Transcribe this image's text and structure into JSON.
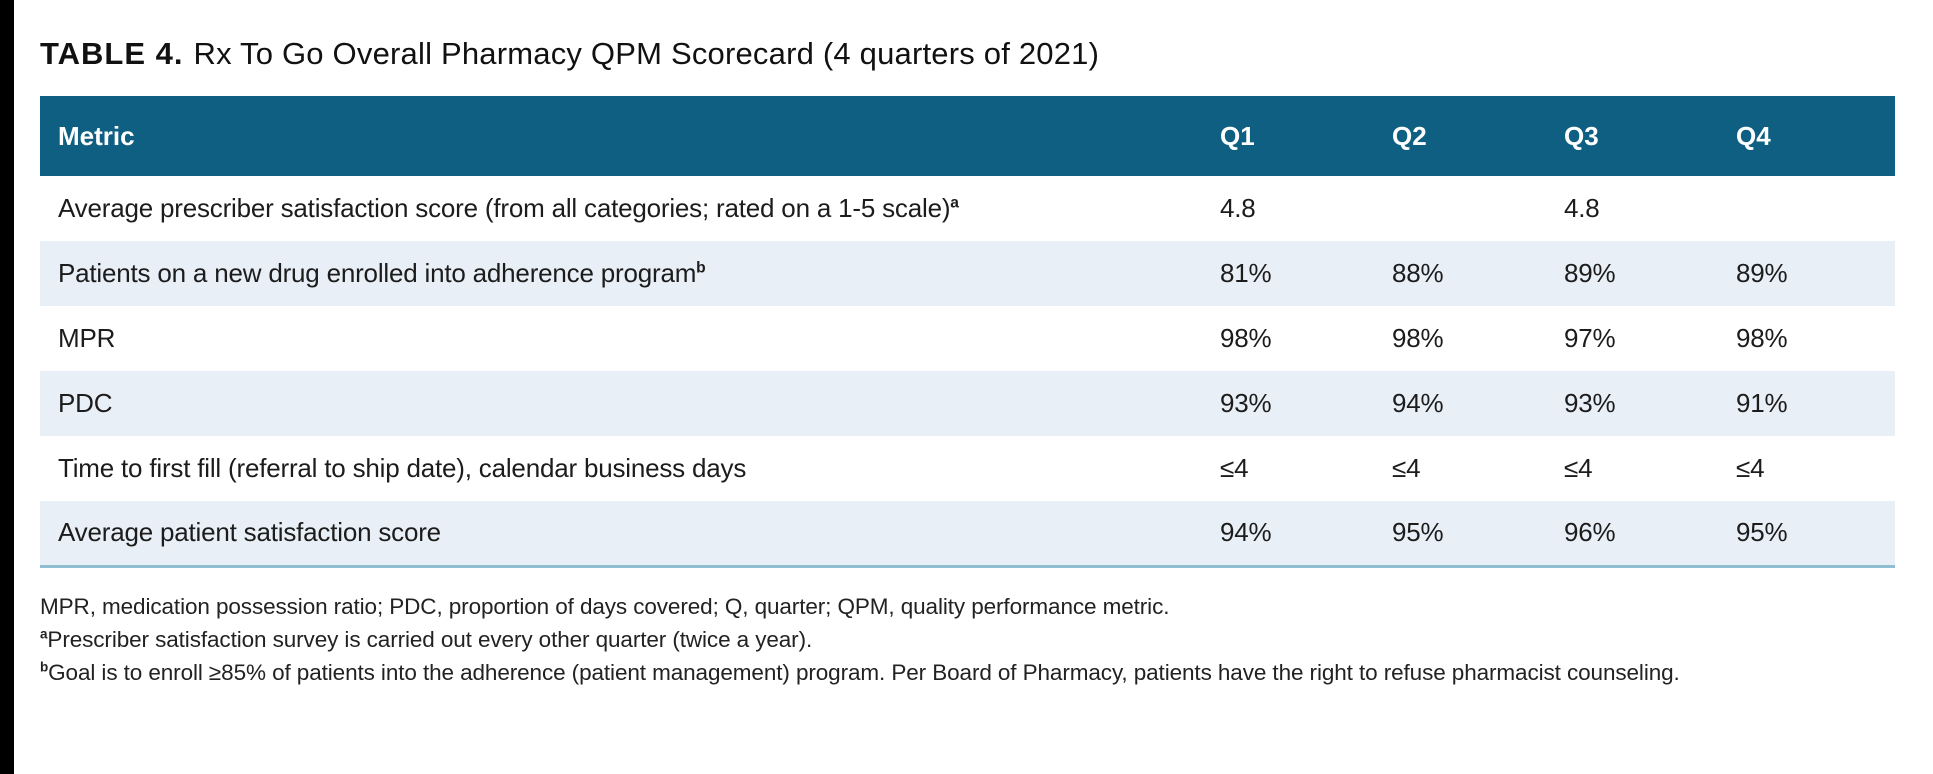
{
  "page": {
    "title_label": "TABLE 4.",
    "title_text": "Rx To Go Overall Pharmacy QPM Scorecard (4 quarters of 2021)"
  },
  "table": {
    "columns": [
      "Metric",
      "Q1",
      "Q2",
      "Q3",
      "Q4"
    ],
    "rows": [
      {
        "metric": "Average prescriber satisfaction score (from all categories; rated on a 1-5 scale)",
        "sup": "a",
        "values": [
          "4.8",
          "",
          "4.8",
          ""
        ]
      },
      {
        "metric": "Patients on a new drug enrolled into adherence program",
        "sup": "b",
        "values": [
          "81%",
          "88%",
          "89%",
          "89%"
        ]
      },
      {
        "metric": "MPR",
        "sup": "",
        "values": [
          "98%",
          "98%",
          "97%",
          "98%"
        ]
      },
      {
        "metric": "PDC",
        "sup": "",
        "values": [
          "93%",
          "94%",
          "93%",
          "91%"
        ]
      },
      {
        "metric": "Time to first fill (referral to ship date), calendar business days",
        "sup": "",
        "values": [
          "≤4",
          "≤4",
          "≤4",
          "≤4"
        ]
      },
      {
        "metric": "Average patient satisfaction score",
        "sup": "",
        "values": [
          "94%",
          "95%",
          "96%",
          "95%"
        ]
      }
    ]
  },
  "footnotes": {
    "abbreviations": "MPR, medication possession ratio; PDC, proportion of days covered; Q, quarter; QPM, quality performance metric.",
    "a_sup": "a",
    "a_text": "Prescriber satisfaction survey is carried out every other quarter (twice a year).",
    "b_sup": "b",
    "b_text": "Goal is to enroll ≥85% of patients into the adherence (patient management) program. Per Board of Pharmacy, patients have the right to refuse pharmacist counseling."
  },
  "colors": {
    "header_bg": "#0E5F81",
    "zebra_row_bg": "#E9EFF6",
    "table_bottom_border": "#8FBDD1",
    "left_bar": "#000000",
    "header_text": "#FFFFFF",
    "body_text": "#1C1C1C"
  }
}
